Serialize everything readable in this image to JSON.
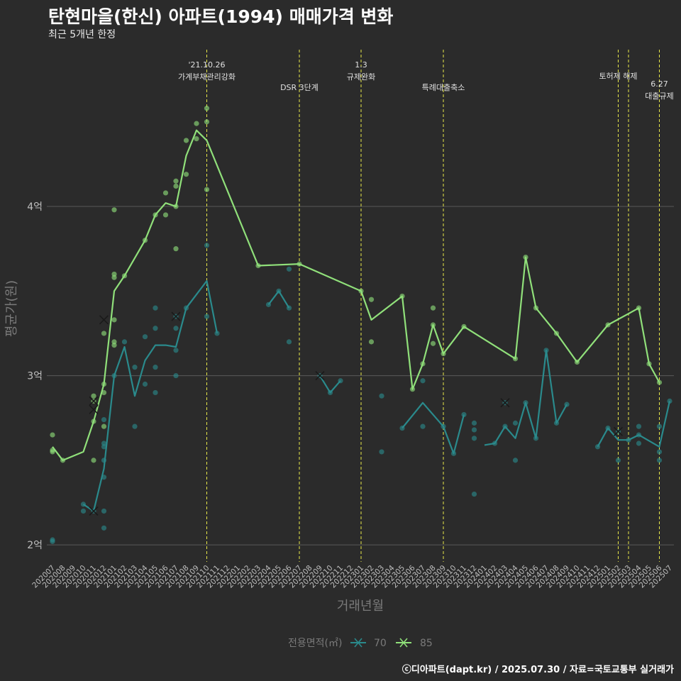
{
  "title": "탄현마을(한신) 아파트(1994) 매매가격 변화",
  "subtitle": "최근 5개년 한정",
  "caption": "ⓒ디아파트(dapt.kr) / 2025.07.30 / 자료=국토교통부 실거래가",
  "colors": {
    "background": "#2b2b2b",
    "grid": "#5a5a5a",
    "axis_text": "#bfbfbf",
    "series_70": "#2a8a8c",
    "series_85": "#90e07a",
    "event_line": "#e8e84a"
  },
  "chart_data": {
    "type": "line",
    "xlabel": "거래년월",
    "ylabel": "평균가(원)",
    "ylim": [
      1.9,
      4.96
    ],
    "y_ticks": [
      {
        "value": 2,
        "label": "2억"
      },
      {
        "value": 3,
        "label": "3억"
      },
      {
        "value": 4,
        "label": "4억"
      }
    ],
    "legend": {
      "title": "전용면적(㎡)",
      "position": "bottom"
    },
    "categories": [
      "202007",
      "202008",
      "202009",
      "202010",
      "202011",
      "202012",
      "202101",
      "202102",
      "202103",
      "202104",
      "202105",
      "202106",
      "202107",
      "202108",
      "202109",
      "202110",
      "202111",
      "202112",
      "202201",
      "202202",
      "202203",
      "202204",
      "202205",
      "202206",
      "202207",
      "202208",
      "202209",
      "202210",
      "202211",
      "202212",
      "202301",
      "202302",
      "202303",
      "202304",
      "202305",
      "202306",
      "202307",
      "202308",
      "202309",
      "202310",
      "202311",
      "202312",
      "202401",
      "202402",
      "202403",
      "202404",
      "202405",
      "202406",
      "202407",
      "202408",
      "202409",
      "202410",
      "202411",
      "202412",
      "202501",
      "202502",
      "202503",
      "202504",
      "202505",
      "202506",
      "202507"
    ],
    "events": [
      {
        "x": 15,
        "label": "'21.10.26\n가계부채관리강화",
        "row": 0
      },
      {
        "x": 24,
        "label": "DSR 3단계",
        "row": 2
      },
      {
        "x": 30,
        "label": "1.3\n규제완화",
        "row": 0
      },
      {
        "x": 38,
        "label": "특례대출축소",
        "row": 2
      },
      {
        "x": 55,
        "label": "토허제 해제",
        "row": 1
      },
      {
        "x": 56,
        "label": "",
        "row": 1
      },
      {
        "x": 59,
        "label": "6.27\n대출규제",
        "row": 1.7
      }
    ],
    "series": [
      {
        "name": "70",
        "color": "#2a8a8c",
        "lines": [
          [
            [
              3,
              2.24
            ],
            [
              4,
              2.2
            ],
            [
              5,
              2.45
            ],
            [
              6,
              3.0
            ],
            [
              7,
              3.17
            ],
            [
              8,
              2.88
            ],
            [
              9,
              3.09
            ],
            [
              10,
              3.18
            ],
            [
              11,
              3.18
            ],
            [
              12,
              3.17
            ],
            [
              13,
              3.4
            ],
            [
              14,
              3.48
            ],
            [
              15,
              3.56
            ],
            [
              16,
              3.25
            ]
          ],
          [
            [
              21,
              3.42
            ],
            [
              22,
              3.5
            ],
            [
              23,
              3.4
            ]
          ],
          [
            [
              26,
              3.0
            ],
            [
              27,
              2.9
            ],
            [
              28,
              2.97
            ]
          ],
          [
            [
              34,
              2.69
            ],
            [
              36,
              2.84
            ],
            [
              38,
              2.7
            ],
            [
              39,
              2.54
            ],
            [
              40,
              2.77
            ]
          ],
          [
            [
              42,
              2.59
            ],
            [
              43,
              2.6
            ],
            [
              44,
              2.7
            ],
            [
              45,
              2.63
            ],
            [
              46,
              2.84
            ],
            [
              47,
              2.63
            ],
            [
              48,
              3.15
            ],
            [
              49,
              2.72
            ],
            [
              50,
              2.83
            ]
          ],
          [
            [
              53,
              2.58
            ],
            [
              54,
              2.69
            ],
            [
              55,
              2.62
            ],
            [
              56,
              2.62
            ],
            [
              57,
              2.65
            ],
            [
              59,
              2.58
            ],
            [
              60,
              2.85
            ]
          ]
        ],
        "points": [
          [
            0,
            2.02
          ],
          [
            0,
            2.03
          ],
          [
            3,
            2.2
          ],
          [
            3,
            2.24
          ],
          [
            4,
            2.2
          ],
          [
            5,
            2.1
          ],
          [
            5,
            2.2
          ],
          [
            5,
            2.4
          ],
          [
            5,
            2.5
          ],
          [
            5,
            2.58
          ],
          [
            5,
            2.6
          ],
          [
            5,
            2.74
          ],
          [
            6,
            3.0
          ],
          [
            7,
            3.2
          ],
          [
            8,
            2.7
          ],
          [
            8,
            3.05
          ],
          [
            9,
            2.95
          ],
          [
            9,
            3.23
          ],
          [
            10,
            2.9
          ],
          [
            10,
            3.05
          ],
          [
            10,
            3.28
          ],
          [
            10,
            3.4
          ],
          [
            12,
            3.0
          ],
          [
            12,
            3.15
          ],
          [
            12,
            3.28
          ],
          [
            12,
            3.35
          ],
          [
            13,
            3.4
          ],
          [
            15,
            3.35
          ],
          [
            15,
            3.77
          ],
          [
            16,
            3.25
          ],
          [
            21,
            3.42
          ],
          [
            22,
            3.5
          ],
          [
            23,
            3.2
          ],
          [
            23,
            3.4
          ],
          [
            23,
            3.63
          ],
          [
            26,
            3.0
          ],
          [
            27,
            2.9
          ],
          [
            28,
            2.97
          ],
          [
            32,
            2.55
          ],
          [
            32,
            2.88
          ],
          [
            34,
            2.69
          ],
          [
            36,
            2.7
          ],
          [
            36,
            2.97
          ],
          [
            38,
            2.7
          ],
          [
            39,
            2.54
          ],
          [
            40,
            2.77
          ],
          [
            41,
            2.3
          ],
          [
            41,
            2.63
          ],
          [
            41,
            2.68
          ],
          [
            41,
            2.72
          ],
          [
            43,
            2.6
          ],
          [
            44,
            2.7
          ],
          [
            44,
            2.84
          ],
          [
            45,
            2.5
          ],
          [
            45,
            2.72
          ],
          [
            46,
            2.84
          ],
          [
            47,
            2.63
          ],
          [
            48,
            3.15
          ],
          [
            49,
            2.72
          ],
          [
            50,
            2.83
          ],
          [
            53,
            2.58
          ],
          [
            54,
            2.69
          ],
          [
            55,
            2.5
          ],
          [
            55,
            2.67
          ],
          [
            56,
            2.62
          ],
          [
            57,
            2.6
          ],
          [
            57,
            2.65
          ],
          [
            57,
            2.7
          ],
          [
            59,
            2.5
          ],
          [
            59,
            2.55
          ],
          [
            59,
            2.7
          ],
          [
            60,
            2.85
          ]
        ],
        "crosses": [
          [
            4,
            2.2
          ],
          [
            12,
            3.35
          ],
          [
            26,
            3.0
          ],
          [
            44,
            2.84
          ],
          [
            55,
            2.67
          ]
        ]
      },
      {
        "name": "85",
        "color": "#90e07a",
        "lines": [
          [
            [
              0,
              2.58
            ],
            [
              1,
              2.5
            ],
            [
              3,
              2.55
            ],
            [
              4,
              2.73
            ],
            [
              5,
              2.95
            ],
            [
              6,
              3.5
            ],
            [
              7,
              3.59
            ],
            [
              9,
              3.8
            ],
            [
              10,
              3.95
            ],
            [
              11,
              4.02
            ],
            [
              12,
              4.0
            ],
            [
              13,
              4.3
            ],
            [
              14,
              4.45
            ],
            [
              15,
              4.39
            ],
            [
              20,
              3.65
            ],
            [
              24,
              3.66
            ],
            [
              30,
              3.5
            ],
            [
              31,
              3.33
            ],
            [
              34,
              3.47
            ],
            [
              35,
              2.92
            ],
            [
              36,
              3.07
            ],
            [
              37,
              3.3
            ],
            [
              38,
              3.13
            ],
            [
              40,
              3.29
            ],
            [
              45,
              3.1
            ],
            [
              46,
              3.7
            ],
            [
              47,
              3.4
            ],
            [
              49,
              3.25
            ],
            [
              51,
              3.08
            ],
            [
              54,
              3.3
            ],
            [
              57,
              3.4
            ],
            [
              58,
              3.07
            ],
            [
              59,
              2.96
            ]
          ]
        ],
        "points": [
          [
            0,
            2.55
          ],
          [
            0,
            2.56
          ],
          [
            0,
            2.65
          ],
          [
            1,
            2.5
          ],
          [
            4,
            2.5
          ],
          [
            4,
            2.73
          ],
          [
            4,
            2.85
          ],
          [
            4,
            2.88
          ],
          [
            5,
            2.7
          ],
          [
            5,
            2.9
          ],
          [
            5,
            2.95
          ],
          [
            5,
            3.25
          ],
          [
            6,
            3.18
          ],
          [
            6,
            3.2
          ],
          [
            6,
            3.33
          ],
          [
            6,
            3.58
          ],
          [
            6,
            3.6
          ],
          [
            6,
            3.98
          ],
          [
            7,
            3.59
          ],
          [
            9,
            3.8
          ],
          [
            10,
            3.95
          ],
          [
            11,
            3.95
          ],
          [
            11,
            4.08
          ],
          [
            12,
            3.75
          ],
          [
            12,
            4.0
          ],
          [
            12,
            4.12
          ],
          [
            12,
            4.15
          ],
          [
            13,
            4.19
          ],
          [
            13,
            4.39
          ],
          [
            14,
            4.4
          ],
          [
            14,
            4.49
          ],
          [
            15,
            4.1
          ],
          [
            15,
            4.5
          ],
          [
            15,
            4.58
          ],
          [
            20,
            3.65
          ],
          [
            24,
            3.66
          ],
          [
            30,
            3.5
          ],
          [
            31,
            3.2
          ],
          [
            31,
            3.45
          ],
          [
            34,
            3.47
          ],
          [
            35,
            2.92
          ],
          [
            36,
            3.07
          ],
          [
            37,
            3.19
          ],
          [
            37,
            3.3
          ],
          [
            37,
            3.4
          ],
          [
            38,
            3.13
          ],
          [
            40,
            3.29
          ],
          [
            45,
            3.1
          ],
          [
            46,
            3.7
          ],
          [
            47,
            3.4
          ],
          [
            49,
            3.25
          ],
          [
            51,
            3.08
          ],
          [
            54,
            3.3
          ],
          [
            57,
            3.4
          ],
          [
            58,
            3.07
          ],
          [
            59,
            2.96
          ]
        ],
        "crosses": [
          [
            4,
            2.8
          ],
          [
            4,
            2.85
          ],
          [
            5,
            3.33
          ]
        ]
      }
    ]
  }
}
